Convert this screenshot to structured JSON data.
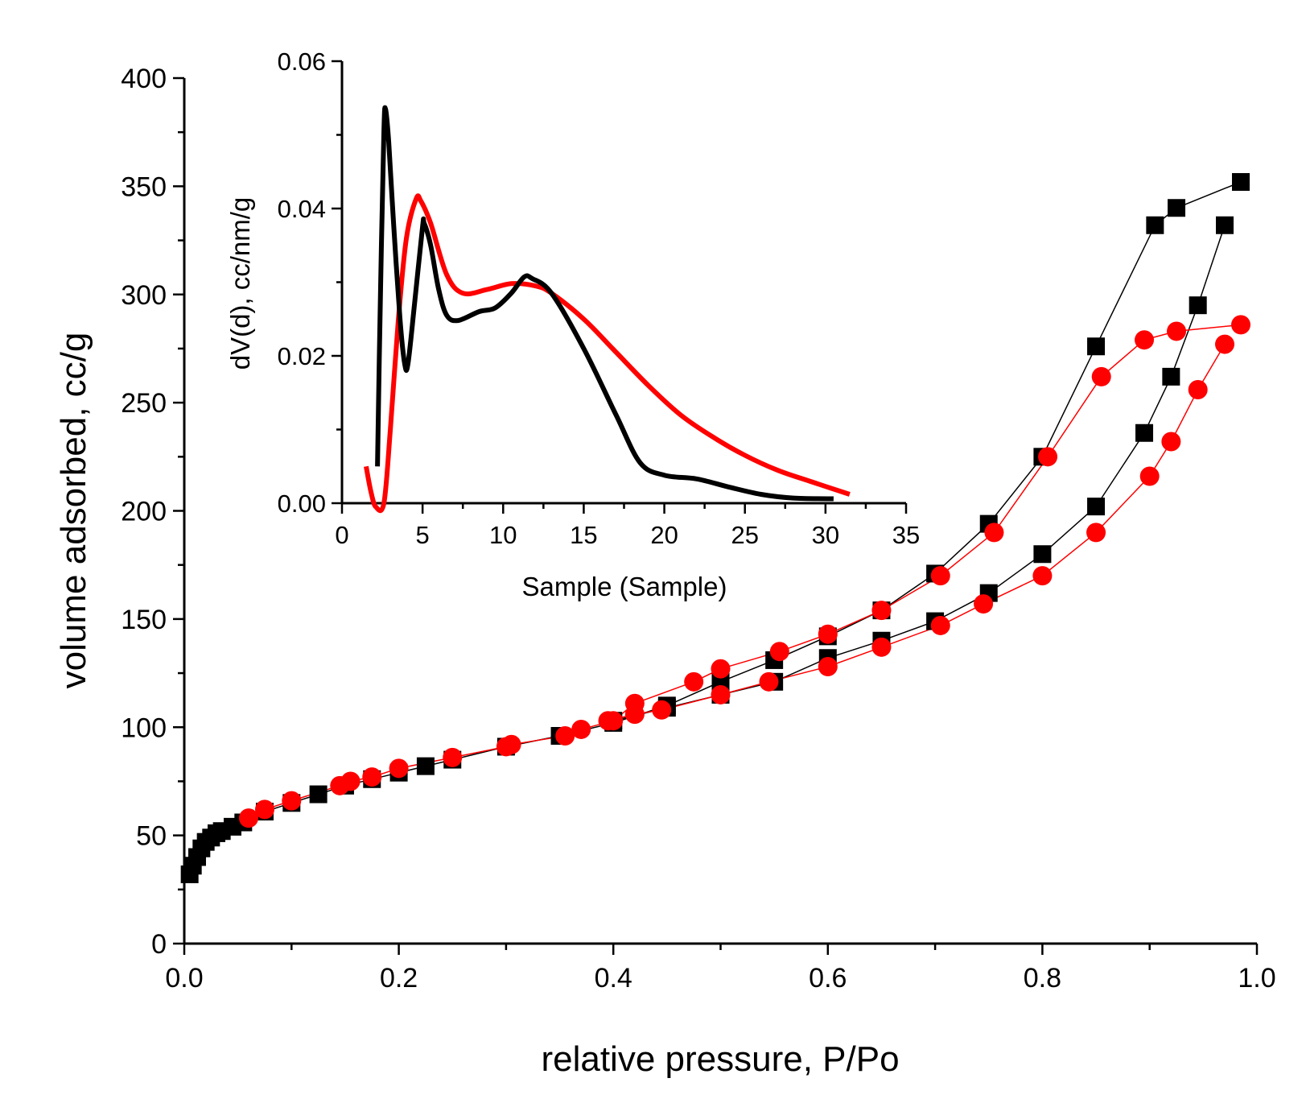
{
  "chart_data": [
    {
      "name": "isotherm",
      "type": "scatter",
      "xlabel": "relative pressure, P/Po",
      "ylabel": "volume adsorbed, cc/g",
      "xlim": [
        0.0,
        1.0
      ],
      "ylim": [
        0,
        400
      ],
      "xticks": [
        "0.0",
        "0.2",
        "0.4",
        "0.6",
        "0.8",
        "1.0"
      ],
      "yticks": [
        "0",
        "50",
        "100",
        "150",
        "200",
        "250",
        "300",
        "350",
        "400"
      ],
      "series": [
        {
          "name": "black squares",
          "marker": "square",
          "color": "#000000",
          "segments": [
            [
              [
                0.005,
                32
              ],
              [
                0.008,
                36
              ],
              [
                0.012,
                40
              ],
              [
                0.016,
                44
              ],
              [
                0.02,
                47
              ],
              [
                0.025,
                49
              ],
              [
                0.03,
                51
              ],
              [
                0.035,
                52
              ],
              [
                0.045,
                54
              ],
              [
                0.055,
                56
              ],
              [
                0.075,
                61
              ],
              [
                0.1,
                65
              ],
              [
                0.125,
                69
              ],
              [
                0.15,
                73
              ],
              [
                0.175,
                76
              ],
              [
                0.2,
                79
              ],
              [
                0.225,
                82
              ],
              [
                0.25,
                85
              ],
              [
                0.3,
                91
              ],
              [
                0.35,
                96
              ],
              [
                0.4,
                102
              ],
              [
                0.45,
                110
              ],
              [
                0.5,
                121
              ],
              [
                0.55,
                131
              ],
              [
                0.6,
                142
              ],
              [
                0.65,
                154
              ],
              [
                0.7,
                171
              ],
              [
                0.75,
                194
              ],
              [
                0.8,
                225
              ],
              [
                0.85,
                276
              ],
              [
                0.905,
                332
              ],
              [
                0.925,
                340
              ],
              [
                0.985,
                352
              ]
            ],
            [
              [
                0.97,
                332
              ],
              [
                0.945,
                295
              ],
              [
                0.92,
                262
              ],
              [
                0.895,
                236
              ],
              [
                0.85,
                202
              ],
              [
                0.8,
                180
              ],
              [
                0.75,
                162
              ],
              [
                0.7,
                149
              ],
              [
                0.65,
                140
              ],
              [
                0.6,
                132
              ],
              [
                0.55,
                121
              ],
              [
                0.5,
                115
              ],
              [
                0.45,
                109
              ],
              [
                0.4,
                103
              ]
            ]
          ]
        },
        {
          "name": "red circles",
          "marker": "circle",
          "color": "#ff0000",
          "segments": [
            [
              [
                0.06,
                58
              ],
              [
                0.075,
                62
              ],
              [
                0.1,
                66
              ],
              [
                0.145,
                73
              ],
              [
                0.155,
                75
              ],
              [
                0.175,
                77
              ],
              [
                0.2,
                81
              ],
              [
                0.25,
                86
              ],
              [
                0.3,
                91
              ],
              [
                0.305,
                92
              ],
              [
                0.355,
                96
              ],
              [
                0.37,
                99
              ],
              [
                0.4,
                103
              ],
              [
                0.42,
                111
              ],
              [
                0.475,
                121
              ],
              [
                0.5,
                127
              ],
              [
                0.555,
                135
              ],
              [
                0.6,
                143
              ],
              [
                0.65,
                154
              ],
              [
                0.705,
                170
              ],
              [
                0.755,
                190
              ],
              [
                0.805,
                225
              ],
              [
                0.855,
                262
              ],
              [
                0.895,
                279
              ],
              [
                0.925,
                283
              ],
              [
                0.985,
                286
              ]
            ],
            [
              [
                0.97,
                277
              ],
              [
                0.945,
                256
              ],
              [
                0.92,
                232
              ],
              [
                0.9,
                216
              ],
              [
                0.85,
                190
              ],
              [
                0.8,
                170
              ],
              [
                0.745,
                157
              ],
              [
                0.705,
                147
              ],
              [
                0.65,
                137
              ],
              [
                0.6,
                128
              ],
              [
                0.545,
                121
              ],
              [
                0.5,
                115
              ],
              [
                0.445,
                108
              ],
              [
                0.42,
                106
              ],
              [
                0.395,
                103
              ]
            ]
          ]
        }
      ]
    },
    {
      "name": "inset-pore-size-distribution",
      "type": "line",
      "xlabel": "Sample (Sample)",
      "ylabel": "dV(d), cc/nm/g",
      "xlim": [
        0,
        35
      ],
      "ylim": [
        0.0,
        0.06
      ],
      "xticks": [
        "0",
        "5",
        "10",
        "15",
        "20",
        "25",
        "30",
        "35"
      ],
      "yticks": [
        "0.00",
        "0.02",
        "0.04",
        "0.06"
      ],
      "series": [
        {
          "name": "black curve",
          "color": "#000000",
          "points": [
            [
              2.2,
              0.005
            ],
            [
              2.4,
              0.03
            ],
            [
              2.6,
              0.0505
            ],
            [
              2.7,
              0.0535
            ],
            [
              2.9,
              0.049
            ],
            [
              3.2,
              0.038
            ],
            [
              3.6,
              0.025
            ],
            [
              3.9,
              0.0188
            ],
            [
              4.1,
              0.019
            ],
            [
              4.5,
              0.027
            ],
            [
              5.0,
              0.0375
            ],
            [
              5.1,
              0.038
            ],
            [
              5.5,
              0.035
            ],
            [
              6.0,
              0.029
            ],
            [
              6.5,
              0.0255
            ],
            [
              7.2,
              0.0248
            ],
            [
              8.5,
              0.026
            ],
            [
              9.5,
              0.0265
            ],
            [
              10.5,
              0.0285
            ],
            [
              11.3,
              0.0307
            ],
            [
              11.8,
              0.0305
            ],
            [
              13,
              0.0285
            ],
            [
              15,
              0.021
            ],
            [
              17,
              0.012
            ],
            [
              18.5,
              0.0055
            ],
            [
              20,
              0.0038
            ],
            [
              22,
              0.0033
            ],
            [
              24,
              0.0022
            ],
            [
              26,
              0.0012
            ],
            [
              28,
              0.0007
            ],
            [
              30.5,
              0.0006
            ]
          ]
        },
        {
          "name": "red curve",
          "color": "#ff0000",
          "points": [
            [
              1.5,
              0.005
            ],
            [
              1.8,
              0.0015
            ],
            [
              2.1,
              -0.0005
            ],
            [
              2.6,
              0.0
            ],
            [
              3.0,
              0.01
            ],
            [
              3.5,
              0.025
            ],
            [
              4.0,
              0.036
            ],
            [
              4.6,
              0.0413
            ],
            [
              4.9,
              0.041
            ],
            [
              5.5,
              0.038
            ],
            [
              6.5,
              0.031
            ],
            [
              7.5,
              0.0285
            ],
            [
              9.0,
              0.029
            ],
            [
              10.5,
              0.0298
            ],
            [
              12.0,
              0.0295
            ],
            [
              13.0,
              0.0285
            ],
            [
              15.0,
              0.025
            ],
            [
              17.0,
              0.0205
            ],
            [
              19.0,
              0.016
            ],
            [
              21.0,
              0.012
            ],
            [
              23.0,
              0.009
            ],
            [
              25.0,
              0.0065
            ],
            [
              27.0,
              0.0045
            ],
            [
              29.0,
              0.003
            ],
            [
              31.5,
              0.0012
            ]
          ]
        }
      ]
    }
  ]
}
